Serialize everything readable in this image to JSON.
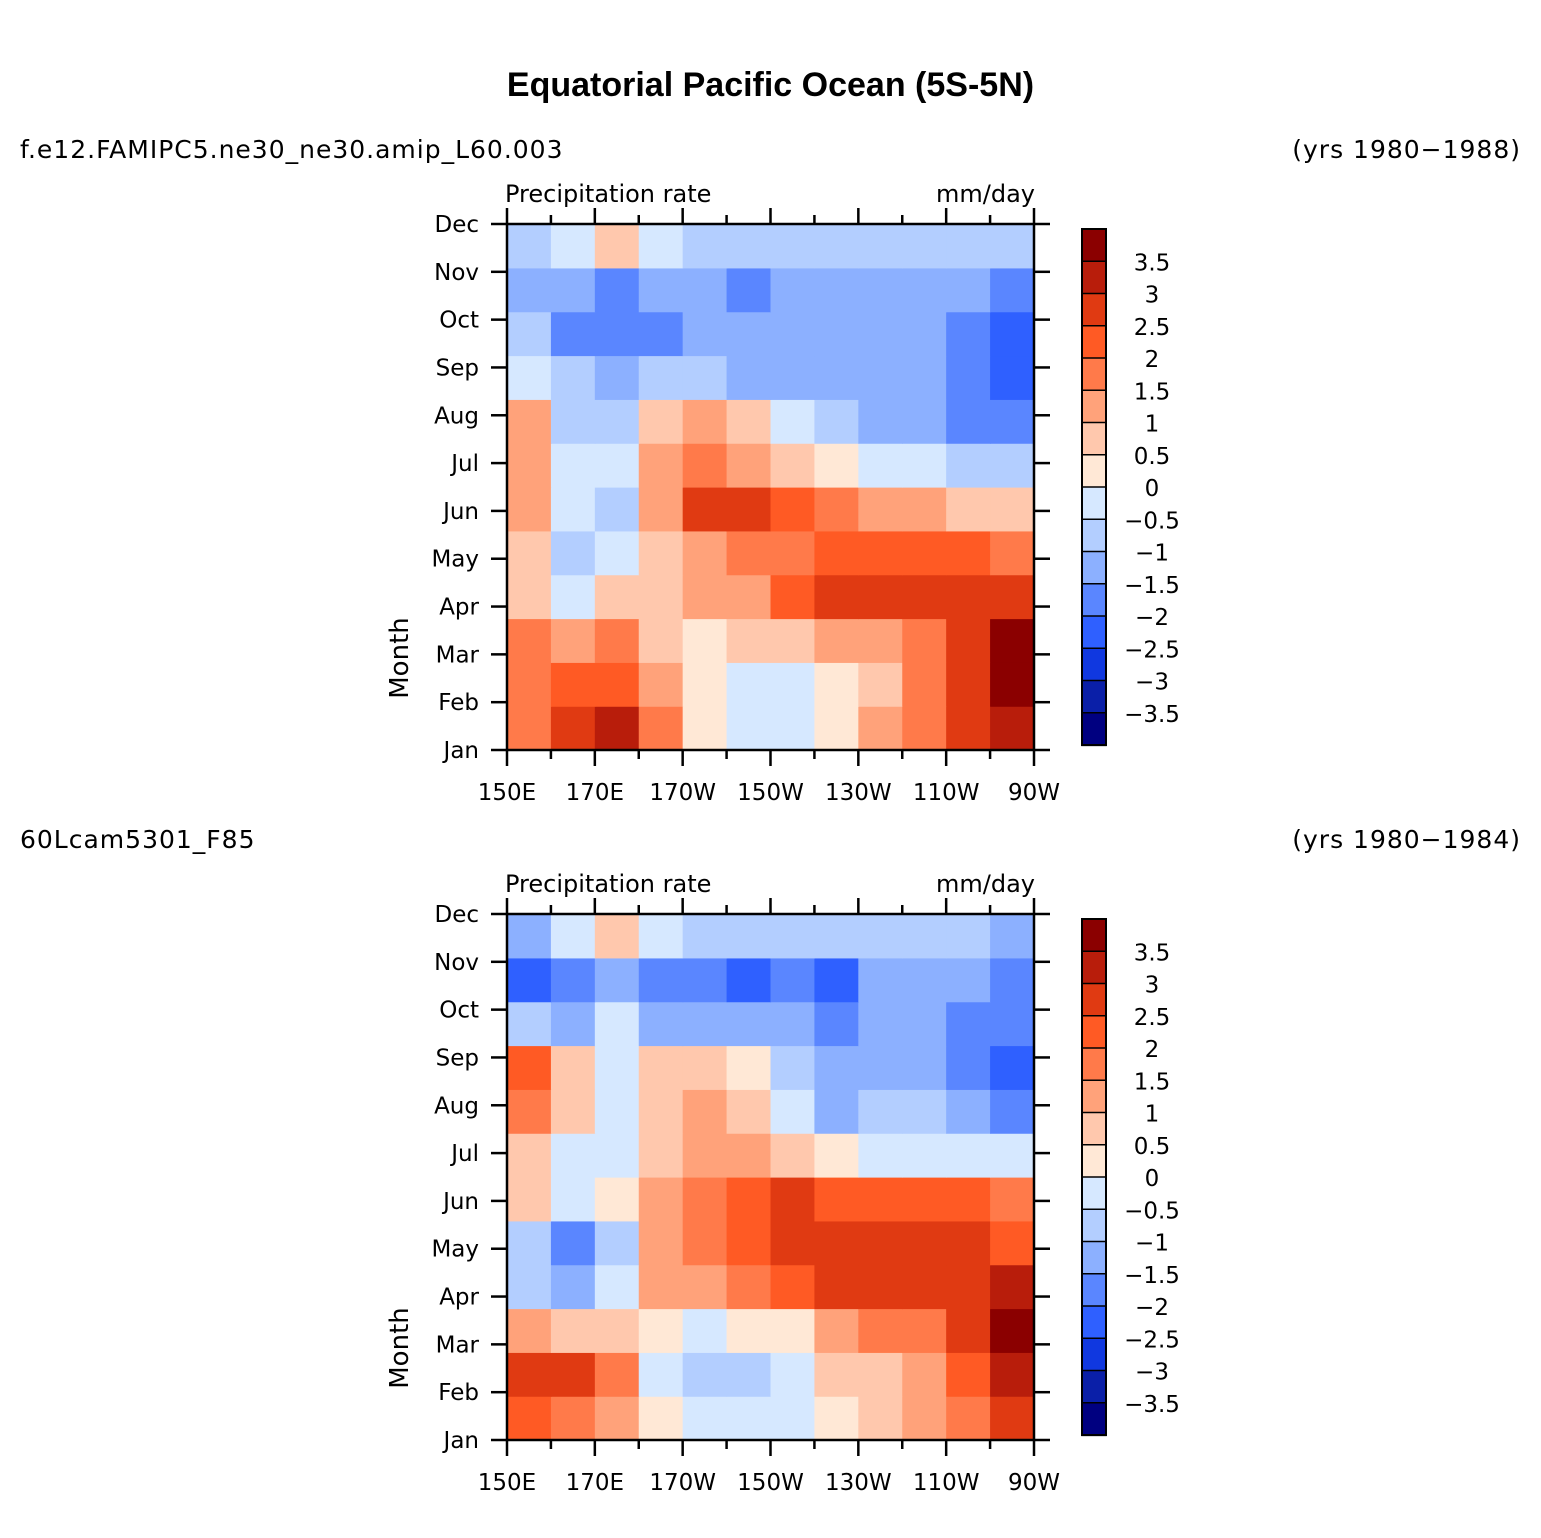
{
  "title": "Equatorial Pacific Ocean (5S-5N)",
  "colorbar": {
    "levels": [
      "3.5",
      "3",
      "2.5",
      "2",
      "1.5",
      "1",
      "0.5",
      "0",
      "−0.5",
      "−1",
      "−1.5",
      "−2",
      "−2.5",
      "−3",
      "−3.5"
    ],
    "colors": [
      "#8b0000",
      "#b81d0b",
      "#e03a12",
      "#ff5a24",
      "#ff7a4a",
      "#ffa27a",
      "#ffc8ad",
      "#ffe8d6",
      "#d6e8ff",
      "#b3ceff",
      "#8cb0ff",
      "#5a86ff",
      "#2f60ff",
      "#1038e0",
      "#0a1fa8",
      "#000080"
    ]
  },
  "chart_data": [
    {
      "type": "heatmap",
      "case": "f.e12.FAMIPC5.ne30_ne30.amip_L60.003",
      "years": "(yrs 1980−1988)",
      "left_label": "Precipitation  rate",
      "right_label": "mm/day",
      "ylabel": "Month",
      "y_ticks": [
        "Dec",
        "Nov",
        "Oct",
        "Sep",
        "Aug",
        "Jul",
        "Jun",
        "May",
        "Apr",
        "Mar",
        "Feb",
        "Jan"
      ],
      "x_ticks": [
        "150E",
        "170E",
        "170W",
        "150W",
        "130W",
        "110W",
        "90W"
      ],
      "grid_rows_jan_to_dec": [
        [
          1.5,
          2.5,
          3.0,
          1.5,
          0.3,
          -0.5,
          -0.5,
          0.3,
          1.0,
          1.5,
          2.5,
          3.0
        ],
        [
          1.5,
          2.0,
          2.0,
          1.0,
          0.3,
          -0.5,
          -0.2,
          0.3,
          0.8,
          1.5,
          2.5,
          3.5
        ],
        [
          1.5,
          1.0,
          1.5,
          0.8,
          0.3,
          0.5,
          0.8,
          1.0,
          1.2,
          1.8,
          2.5,
          3.5
        ],
        [
          0.8,
          -0.2,
          0.8,
          0.5,
          1.0,
          1.2,
          2.0,
          2.5,
          2.5,
          2.5,
          2.5,
          2.5
        ],
        [
          0.5,
          -1.0,
          -0.5,
          0.8,
          1.0,
          1.5,
          1.5,
          2.0,
          2.0,
          2.0,
          2.0,
          1.5
        ],
        [
          1.0,
          -0.5,
          -1.0,
          1.0,
          2.5,
          2.5,
          2.0,
          1.5,
          1.0,
          1.0,
          0.8,
          0.5
        ],
        [
          1.0,
          -0.2,
          -0.5,
          1.0,
          1.5,
          1.0,
          0.8,
          0.0,
          -0.3,
          -0.5,
          -0.8,
          -1.0
        ],
        [
          1.0,
          -1.0,
          -1.0,
          0.5,
          1.0,
          0.5,
          -0.5,
          -1.0,
          -1.2,
          -1.5,
          -1.8,
          -2.0
        ],
        [
          -0.5,
          -1.0,
          -1.2,
          -1.0,
          -1.0,
          -1.2,
          -1.2,
          -1.5,
          -1.5,
          -1.5,
          -2.0,
          -2.5
        ],
        [
          -1.0,
          -1.8,
          -2.0,
          -2.0,
          -1.2,
          -1.5,
          -1.5,
          -1.5,
          -1.5,
          -1.5,
          -2.0,
          -2.5
        ],
        [
          -1.5,
          -1.5,
          -1.8,
          -1.5,
          -1.2,
          -1.8,
          -1.2,
          -1.2,
          -1.2,
          -1.2,
          -1.5,
          -1.8
        ],
        [
          -0.8,
          -0.2,
          0.5,
          -0.5,
          -0.8,
          -1.0,
          -1.0,
          -1.0,
          -1.0,
          -1.0,
          -1.0,
          -1.0
        ]
      ]
    },
    {
      "type": "heatmap",
      "case": "60Lcam5301_F85",
      "years": "(yrs 1980−1984)",
      "left_label": "Precipitation  rate",
      "right_label": "mm/day",
      "ylabel": "Month",
      "y_ticks": [
        "Dec",
        "Nov",
        "Oct",
        "Sep",
        "Aug",
        "Jul",
        "Jun",
        "May",
        "Apr",
        "Mar",
        "Feb",
        "Jan"
      ],
      "x_ticks": [
        "150E",
        "170E",
        "170W",
        "150W",
        "130W",
        "110W",
        "90W"
      ],
      "grid_rows_jan_to_dec": [
        [
          2.0,
          1.5,
          1.0,
          0.3,
          -0.5,
          -0.5,
          -0.2,
          0.3,
          0.5,
          1.0,
          1.5,
          2.5
        ],
        [
          2.8,
          2.5,
          1.5,
          -0.5,
          -1.0,
          -1.0,
          -0.5,
          0.5,
          0.8,
          1.2,
          2.0,
          3.0
        ],
        [
          1.0,
          0.5,
          0.8,
          0.0,
          -0.5,
          0.0,
          0.3,
          1.0,
          1.5,
          1.8,
          2.5,
          3.5
        ],
        [
          -1.0,
          -1.5,
          -0.5,
          1.0,
          1.2,
          1.5,
          2.0,
          2.5,
          2.5,
          2.5,
          2.5,
          3.0
        ],
        [
          -1.0,
          -1.8,
          -1.0,
          1.0,
          1.5,
          2.0,
          2.5,
          2.5,
          2.5,
          2.5,
          2.5,
          2.0
        ],
        [
          0.5,
          -0.5,
          0.0,
          1.0,
          1.5,
          2.0,
          2.5,
          2.0,
          2.0,
          2.0,
          2.0,
          1.5
        ],
        [
          0.5,
          -0.5,
          -0.2,
          0.5,
          1.0,
          1.0,
          0.5,
          0.0,
          -0.3,
          -0.5,
          -0.5,
          -0.5
        ],
        [
          1.5,
          0.5,
          -0.2,
          0.8,
          1.0,
          0.5,
          -0.5,
          -1.5,
          -1.0,
          -1.0,
          -1.5,
          -2.0
        ],
        [
          2.0,
          0.8,
          -0.2,
          0.8,
          0.5,
          0.0,
          -0.8,
          -1.2,
          -1.2,
          -1.5,
          -2.0,
          -2.5
        ],
        [
          -1.0,
          -1.5,
          -0.5,
          -1.5,
          -1.5,
          -1.2,
          -1.5,
          -1.8,
          -1.5,
          -1.5,
          -2.0,
          -2.0
        ],
        [
          -2.5,
          -2.0,
          -1.2,
          -2.0,
          -1.8,
          -2.5,
          -1.8,
          -2.5,
          -1.5,
          -1.2,
          -1.5,
          -1.8
        ],
        [
          -1.5,
          -0.5,
          0.5,
          -0.5,
          -1.0,
          -1.0,
          -1.0,
          -1.0,
          -1.0,
          -1.0,
          -1.0,
          -1.2
        ]
      ]
    }
  ]
}
